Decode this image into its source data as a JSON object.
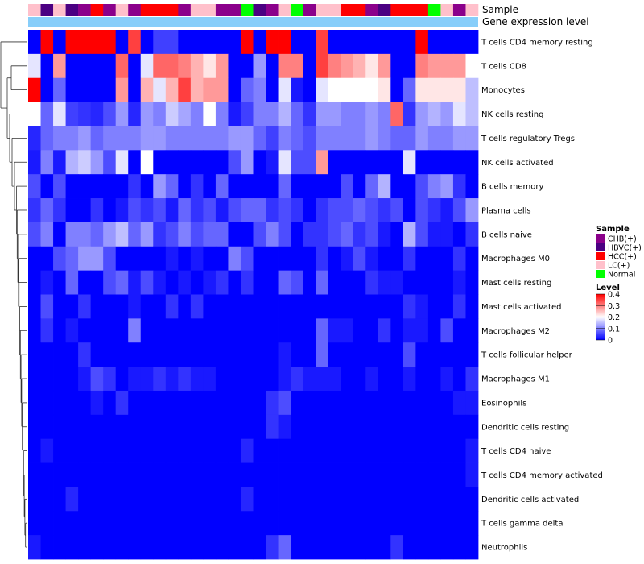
{
  "chart_data": {
    "type": "heatmap",
    "title": "",
    "top_tracks": [
      "Sample",
      "Gene expression level"
    ],
    "rows": [
      "T cells CD4 memory resting",
      "T cells CD8",
      "Monocytes",
      "NK cells resting",
      "T cells regulatory  Tregs",
      "NK cells activated",
      "B cells memory",
      "Plasma cells",
      "B cells naive",
      "Macrophages M0",
      "Mast cells resting",
      "Mast cells activated",
      "Macrophages M2",
      "T cells follicular helper",
      "Macrophages M1",
      "Eosinophils",
      "Dendritic cells resting",
      "T cells CD4 naive",
      "T cells CD4 memory activated",
      "Dendritic cells activated",
      "T cells gamma delta",
      "Neutrophils"
    ],
    "columns_sample_group": [
      "LC(+)",
      "HBVC(+)",
      "LC(+)",
      "HBVC(+)",
      "CHB(+)",
      "HCC(+)",
      "CHB(+)",
      "LC(+)",
      "CHB(+)",
      "HCC(+)",
      "HCC(+)",
      "HCC(+)",
      "CHB(+)",
      "LC(+)",
      "LC(+)",
      "CHB(+)",
      "CHB(+)",
      "Normal",
      "HBVC(+)",
      "CHB(+)",
      "LC(+)",
      "Normal",
      "CHB(+)",
      "LC(+)",
      "LC(+)",
      "HCC(+)",
      "HCC(+)",
      "CHB(+)",
      "HBVC(+)",
      "HCC(+)",
      "HCC(+)",
      "HCC(+)",
      "Normal",
      "LC(+)",
      "CHB(+)",
      "LC(+)"
    ],
    "values": [
      [
        0.0,
        0.4,
        0.0,
        0.4,
        0.4,
        0.4,
        0.4,
        0.0,
        0.35,
        0.0,
        0.05,
        0.05,
        0.0,
        0.0,
        0.0,
        0.0,
        0.0,
        0.4,
        0.0,
        0.4,
        0.4,
        0.0,
        0.0,
        0.35,
        0.0,
        0.0,
        0.0,
        0.0,
        0.0,
        0.0,
        0.0,
        0.4,
        0.0,
        0.0,
        0.0,
        0.0
      ],
      [
        0.18,
        0.0,
        0.28,
        0.0,
        0.0,
        0.0,
        0.0,
        0.32,
        0.0,
        0.18,
        0.32,
        0.32,
        0.3,
        0.26,
        0.22,
        0.28,
        0.0,
        0.0,
        0.12,
        0.0,
        0.3,
        0.3,
        0.0,
        0.35,
        0.3,
        0.28,
        0.26,
        0.22,
        0.28,
        0.0,
        0.0,
        0.3,
        0.28,
        0.28,
        0.28,
        0.2
      ],
      [
        0.4,
        0.0,
        0.08,
        0.0,
        0.0,
        0.0,
        0.0,
        0.28,
        0.0,
        0.26,
        0.18,
        0.26,
        0.35,
        0.26,
        0.28,
        0.28,
        0.0,
        0.08,
        0.1,
        0.0,
        0.18,
        0.02,
        0.0,
        0.18,
        0.2,
        0.2,
        0.2,
        0.2,
        0.22,
        0.0,
        0.08,
        0.22,
        0.22,
        0.22,
        0.22,
        0.15
      ],
      [
        0.2,
        0.08,
        0.18,
        0.05,
        0.04,
        0.03,
        0.06,
        0.12,
        0.03,
        0.12,
        0.1,
        0.16,
        0.13,
        0.1,
        0.2,
        0.1,
        0.02,
        0.05,
        0.1,
        0.1,
        0.14,
        0.08,
        0.04,
        0.12,
        0.12,
        0.1,
        0.1,
        0.12,
        0.1,
        0.32,
        0.04,
        0.12,
        0.14,
        0.12,
        0.18,
        0.15
      ],
      [
        0.03,
        0.08,
        0.1,
        0.1,
        0.12,
        0.08,
        0.1,
        0.1,
        0.1,
        0.12,
        0.12,
        0.1,
        0.1,
        0.1,
        0.1,
        0.1,
        0.12,
        0.12,
        0.08,
        0.05,
        0.1,
        0.08,
        0.06,
        0.1,
        0.1,
        0.1,
        0.1,
        0.12,
        0.1,
        0.08,
        0.08,
        0.12,
        0.1,
        0.1,
        0.12,
        0.12
      ],
      [
        0.02,
        0.1,
        0.02,
        0.14,
        0.16,
        0.12,
        0.06,
        0.18,
        0.0,
        0.2,
        0.0,
        0.0,
        0.0,
        0.0,
        0.0,
        0.0,
        0.06,
        0.12,
        0.0,
        0.02,
        0.18,
        0.06,
        0.06,
        0.28,
        0.0,
        0.0,
        0.0,
        0.0,
        0.0,
        0.0,
        0.18,
        0.0,
        0.0,
        0.0,
        0.0,
        0.0
      ],
      [
        0.06,
        0.0,
        0.06,
        0.0,
        0.0,
        0.0,
        0.0,
        0.0,
        0.04,
        0.0,
        0.12,
        0.08,
        0.0,
        0.04,
        0.0,
        0.08,
        0.0,
        0.0,
        0.0,
        0.0,
        0.08,
        0.0,
        0.0,
        0.0,
        0.0,
        0.06,
        0.0,
        0.08,
        0.14,
        0.0,
        0.0,
        0.06,
        0.1,
        0.12,
        0.04,
        0.0
      ],
      [
        0.04,
        0.08,
        0.04,
        0.0,
        0.0,
        0.04,
        0.0,
        0.02,
        0.06,
        0.04,
        0.06,
        0.02,
        0.08,
        0.04,
        0.06,
        0.02,
        0.06,
        0.08,
        0.08,
        0.04,
        0.06,
        0.04,
        0.0,
        0.04,
        0.06,
        0.06,
        0.08,
        0.06,
        0.04,
        0.06,
        0.0,
        0.06,
        0.04,
        0.02,
        0.06,
        0.12
      ],
      [
        0.06,
        0.1,
        0.0,
        0.1,
        0.1,
        0.08,
        0.12,
        0.15,
        0.08,
        0.12,
        0.04,
        0.06,
        0.1,
        0.06,
        0.08,
        0.08,
        0.0,
        0.0,
        0.06,
        0.1,
        0.06,
        0.0,
        0.04,
        0.04,
        0.06,
        0.08,
        0.04,
        0.06,
        0.02,
        0.0,
        0.14,
        0.06,
        0.02,
        0.02,
        0.0,
        0.04
      ],
      [
        0.0,
        0.0,
        0.06,
        0.08,
        0.12,
        0.12,
        0.06,
        0.0,
        0.0,
        0.0,
        0.0,
        0.02,
        0.0,
        0.02,
        0.0,
        0.0,
        0.1,
        0.06,
        0.0,
        0.0,
        0.0,
        0.0,
        0.0,
        0.04,
        0.0,
        0.02,
        0.06,
        0.02,
        0.0,
        0.0,
        0.04,
        0.0,
        0.0,
        0.0,
        0.04,
        0.0
      ],
      [
        0.0,
        0.02,
        0.0,
        0.08,
        0.0,
        0.0,
        0.06,
        0.08,
        0.02,
        0.06,
        0.02,
        0.0,
        0.02,
        0.0,
        0.02,
        0.04,
        0.0,
        0.04,
        0.0,
        0.0,
        0.08,
        0.06,
        0.0,
        0.08,
        0.0,
        0.0,
        0.0,
        0.04,
        0.02,
        0.02,
        0.0,
        0.0,
        0.0,
        0.0,
        0.02,
        0.0
      ],
      [
        0.0,
        0.06,
        0.0,
        0.0,
        0.04,
        0.0,
        0.0,
        0.0,
        0.02,
        0.0,
        0.0,
        0.04,
        0.0,
        0.04,
        0.0,
        0.0,
        0.0,
        0.0,
        0.0,
        0.0,
        0.0,
        0.0,
        0.0,
        0.0,
        0.0,
        0.0,
        0.0,
        0.0,
        0.0,
        0.0,
        0.04,
        0.02,
        0.0,
        0.0,
        0.04,
        0.0
      ],
      [
        0.0,
        0.04,
        0.0,
        0.02,
        0.0,
        0.0,
        0.0,
        0.0,
        0.1,
        0.0,
        0.0,
        0.0,
        0.0,
        0.0,
        0.0,
        0.0,
        0.0,
        0.0,
        0.0,
        0.0,
        0.0,
        0.0,
        0.0,
        0.08,
        0.02,
        0.02,
        0.0,
        0.0,
        0.04,
        0.0,
        0.02,
        0.02,
        0.0,
        0.06,
        0.0,
        0.0
      ],
      [
        0.0,
        0.0,
        0.0,
        0.0,
        0.04,
        0.0,
        0.0,
        0.0,
        0.0,
        0.0,
        0.0,
        0.0,
        0.0,
        0.0,
        0.0,
        0.0,
        0.0,
        0.0,
        0.0,
        0.0,
        0.02,
        0.0,
        0.0,
        0.08,
        0.0,
        0.0,
        0.0,
        0.0,
        0.0,
        0.0,
        0.06,
        0.0,
        0.0,
        0.0,
        0.0,
        0.0
      ],
      [
        0.0,
        0.0,
        0.0,
        0.0,
        0.02,
        0.06,
        0.04,
        0.0,
        0.02,
        0.02,
        0.04,
        0.02,
        0.04,
        0.02,
        0.02,
        0.0,
        0.0,
        0.0,
        0.0,
        0.0,
        0.02,
        0.04,
        0.02,
        0.02,
        0.02,
        0.0,
        0.0,
        0.02,
        0.0,
        0.0,
        0.02,
        0.0,
        0.0,
        0.02,
        0.0,
        0.04
      ],
      [
        0.0,
        0.0,
        0.0,
        0.0,
        0.0,
        0.02,
        0.0,
        0.04,
        0.0,
        0.0,
        0.0,
        0.0,
        0.0,
        0.0,
        0.0,
        0.0,
        0.0,
        0.0,
        0.0,
        0.04,
        0.06,
        0.0,
        0.0,
        0.0,
        0.0,
        0.0,
        0.0,
        0.0,
        0.0,
        0.0,
        0.0,
        0.0,
        0.0,
        0.0,
        0.02,
        0.02
      ],
      [
        0.0,
        0.0,
        0.0,
        0.0,
        0.0,
        0.0,
        0.0,
        0.0,
        0.0,
        0.0,
        0.0,
        0.0,
        0.0,
        0.0,
        0.0,
        0.0,
        0.0,
        0.0,
        0.0,
        0.04,
        0.02,
        0.0,
        0.0,
        0.0,
        0.0,
        0.0,
        0.0,
        0.0,
        0.0,
        0.0,
        0.0,
        0.0,
        0.0,
        0.0,
        0.0,
        0.0
      ],
      [
        0.0,
        0.02,
        0.0,
        0.0,
        0.0,
        0.0,
        0.0,
        0.0,
        0.0,
        0.0,
        0.0,
        0.0,
        0.0,
        0.0,
        0.0,
        0.0,
        0.0,
        0.03,
        0.0,
        0.0,
        0.0,
        0.0,
        0.0,
        0.0,
        0.0,
        0.0,
        0.0,
        0.0,
        0.0,
        0.0,
        0.0,
        0.0,
        0.0,
        0.0,
        0.0,
        0.02
      ],
      [
        0.0,
        0.0,
        0.0,
        0.0,
        0.0,
        0.0,
        0.0,
        0.0,
        0.0,
        0.0,
        0.0,
        0.0,
        0.0,
        0.0,
        0.0,
        0.0,
        0.0,
        0.0,
        0.0,
        0.0,
        0.0,
        0.0,
        0.0,
        0.0,
        0.0,
        0.0,
        0.0,
        0.0,
        0.0,
        0.0,
        0.0,
        0.0,
        0.0,
        0.0,
        0.0,
        0.02
      ],
      [
        0.0,
        0.0,
        0.0,
        0.03,
        0.0,
        0.0,
        0.0,
        0.0,
        0.0,
        0.0,
        0.0,
        0.0,
        0.0,
        0.0,
        0.0,
        0.0,
        0.0,
        0.03,
        0.0,
        0.0,
        0.0,
        0.0,
        0.0,
        0.0,
        0.0,
        0.0,
        0.0,
        0.0,
        0.0,
        0.0,
        0.0,
        0.0,
        0.0,
        0.0,
        0.0,
        0.0
      ],
      [
        0.0,
        0.0,
        0.0,
        0.0,
        0.0,
        0.0,
        0.0,
        0.0,
        0.0,
        0.0,
        0.0,
        0.0,
        0.0,
        0.0,
        0.0,
        0.0,
        0.0,
        0.0,
        0.0,
        0.0,
        0.0,
        0.0,
        0.0,
        0.0,
        0.0,
        0.0,
        0.0,
        0.0,
        0.0,
        0.0,
        0.0,
        0.0,
        0.0,
        0.0,
        0.0,
        0.0
      ],
      [
        0.02,
        0.0,
        0.0,
        0.0,
        0.0,
        0.0,
        0.0,
        0.0,
        0.0,
        0.0,
        0.0,
        0.0,
        0.0,
        0.0,
        0.0,
        0.0,
        0.0,
        0.0,
        0.0,
        0.04,
        0.08,
        0.0,
        0.0,
        0.0,
        0.0,
        0.0,
        0.0,
        0.0,
        0.0,
        0.04,
        0.0,
        0.0,
        0.0,
        0.0,
        0.0,
        0.0
      ]
    ],
    "color_scale": {
      "min": 0,
      "max": 0.4,
      "stops": [
        {
          "value": 0,
          "color": "#0000ff"
        },
        {
          "value": 0.2,
          "color": "#ffffff"
        },
        {
          "value": 0.4,
          "color": "#ff0000"
        }
      ]
    },
    "legend_sample": {
      "title": "Sample",
      "entries": [
        {
          "label": "CHB(+)",
          "color": "#8b008b"
        },
        {
          "label": "HBVC(+)",
          "color": "#4b0082"
        },
        {
          "label": "HCC(+)",
          "color": "#ff0000"
        },
        {
          "label": "LC(+)",
          "color": "#ffc0cb"
        },
        {
          "label": "Normal",
          "color": "#00ff00"
        }
      ]
    },
    "legend_level": {
      "title": "Level",
      "ticks": [
        0.4,
        0.3,
        0.2,
        0.1,
        0
      ],
      "tick_labels": [
        "0.4",
        "0.3",
        "0.2",
        "0.1",
        "0"
      ]
    },
    "expression_track_color": "#87cefa",
    "dendrogram_side": "left"
  }
}
